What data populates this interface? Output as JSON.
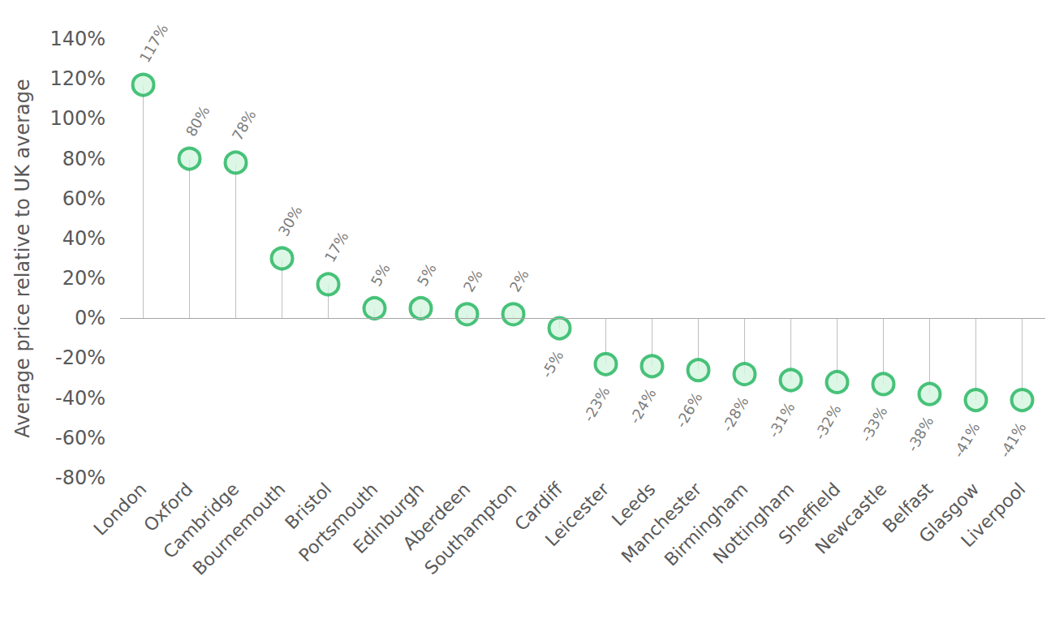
{
  "chart_data": {
    "type": "lollipop",
    "y_label": "Average price relative to UK average",
    "categories": [
      "London",
      "Oxford",
      "Cambridge",
      "Bournemouth",
      "Bristol",
      "Portsmouth",
      "Edinburgh",
      "Aberdeen",
      "Southampton",
      "Cardiff",
      "Leicester",
      "Leeds",
      "Manchester",
      "Birmingham",
      "Nottingham",
      "Sheffield",
      "Newcastle",
      "Belfast",
      "Glasgow",
      "Liverpool"
    ],
    "values": [
      117,
      80,
      78,
      30,
      17,
      5,
      5,
      2,
      2,
      -5,
      -23,
      -24,
      -26,
      -28,
      -31,
      -32,
      -33,
      -38,
      -41,
      -41
    ],
    "value_labels": [
      "117%",
      "80%",
      "78%",
      "30%",
      "17%",
      "5%",
      "5%",
      "2%",
      "2%",
      "-5%",
      "-23%",
      "-24%",
      "-26%",
      "-28%",
      "-31%",
      "-32%",
      "-33%",
      "-38%",
      "-41%",
      "-41%"
    ],
    "color": "#1db35a",
    "ylim": [
      -80,
      140
    ],
    "yticks": [
      {
        "value": -80,
        "label": "-80%"
      },
      {
        "value": -60,
        "label": "-60%"
      },
      {
        "value": -40,
        "label": "-40%"
      },
      {
        "value": -20,
        "label": "-20%"
      },
      {
        "value": 0,
        "label": "0%"
      },
      {
        "value": 20,
        "label": "20%"
      },
      {
        "value": 40,
        "label": "40%"
      },
      {
        "value": 60,
        "label": "60%"
      },
      {
        "value": 80,
        "label": "80%"
      },
      {
        "value": 100,
        "label": "100%"
      },
      {
        "value": 120,
        "label": "120%"
      },
      {
        "value": 140,
        "label": "140%"
      }
    ],
    "grid": false,
    "data_labels": true
  }
}
